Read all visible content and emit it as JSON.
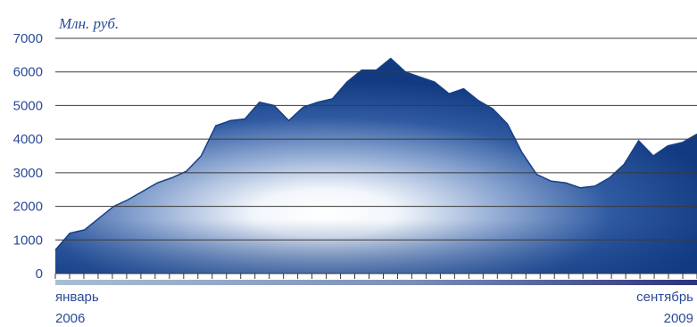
{
  "chart_data": {
    "type": "area",
    "unit_label": "Млн. руб.",
    "ylim": [
      0,
      7000
    ],
    "y_ticks": [
      "7000",
      "6000",
      "5000",
      "4000",
      "3000",
      "2000",
      "1000",
      "0"
    ],
    "y_tick_values": [
      7000,
      6000,
      5000,
      4000,
      3000,
      2000,
      1000,
      0
    ],
    "x_start": {
      "month": "январь",
      "year": "2006"
    },
    "x_end": {
      "month": "сентябрь",
      "year": "2009"
    },
    "x_period_count": 45,
    "grid": true,
    "legend": "none",
    "series": [
      {
        "values": [
          700,
          1200,
          1300,
          1650,
          2000,
          2200,
          2450,
          2700,
          2850,
          3050,
          3500,
          4400,
          4550,
          4600,
          5100,
          5000,
          4550,
          4950,
          5100,
          5200,
          5700,
          6050,
          6050,
          6400,
          6000,
          5850,
          5700,
          5350,
          5500,
          5150,
          4900,
          4450,
          3600,
          2950,
          2750,
          2700,
          2550,
          2600,
          2850,
          3250,
          3950,
          3500,
          3800,
          3900,
          4150
        ]
      }
    ],
    "colors": {
      "fill_dark": "#173f86",
      "fill_light": "#ffffff",
      "grid": "#3a3a3a",
      "text": "#2a4a96",
      "axis_band_light": "#a9bfd1",
      "axis_band_dark": "#2c3479"
    }
  }
}
